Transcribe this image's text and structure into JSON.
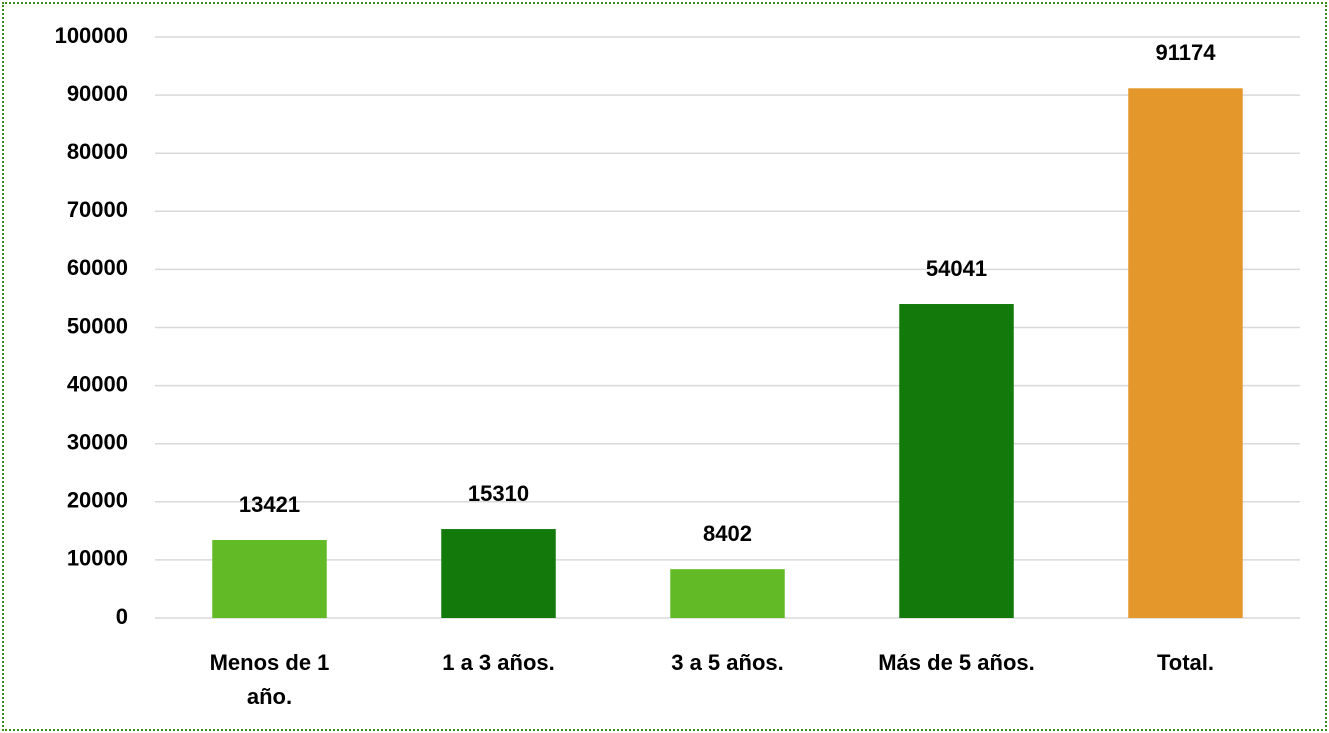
{
  "chart_data": {
    "type": "bar",
    "categories": [
      "Menos de 1 año.",
      "1 a 3 años.",
      "3 a 5 años.",
      "Más de 5 años.",
      "Total."
    ],
    "values": [
      13421,
      15310,
      8402,
      54041,
      91174
    ],
    "colors": [
      "#62bb26",
      "#12790a",
      "#62bb26",
      "#12790a",
      "#e4982c"
    ],
    "ylim": [
      0,
      100000
    ],
    "yticks": [
      0,
      10000,
      20000,
      30000,
      40000,
      50000,
      60000,
      70000,
      80000,
      90000,
      100000
    ],
    "grid": true
  }
}
